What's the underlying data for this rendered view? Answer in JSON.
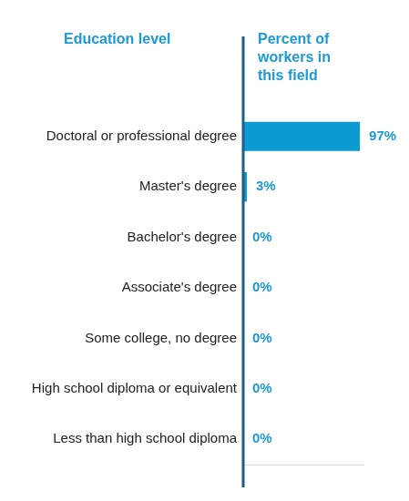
{
  "chart_data": {
    "type": "bar",
    "orientation": "horizontal",
    "ylabel": "Education level",
    "xlabel": "Percent of workers in this field",
    "categories": [
      "Doctoral or professional degree",
      "Master's degree",
      "Bachelor's degree",
      "Associate's degree",
      "Some college, no degree",
      "High school diploma or equivalent",
      "Less than high school diploma"
    ],
    "values": [
      97,
      3,
      0,
      0,
      0,
      0,
      0
    ],
    "value_labels": [
      "97%",
      "3%",
      "0%",
      "0%",
      "0%",
      "0%",
      "0%"
    ],
    "color": "#0a9bd0",
    "xlim": [
      0,
      100
    ],
    "data_labels": true,
    "tick_labels": "y",
    "grid": false
  }
}
